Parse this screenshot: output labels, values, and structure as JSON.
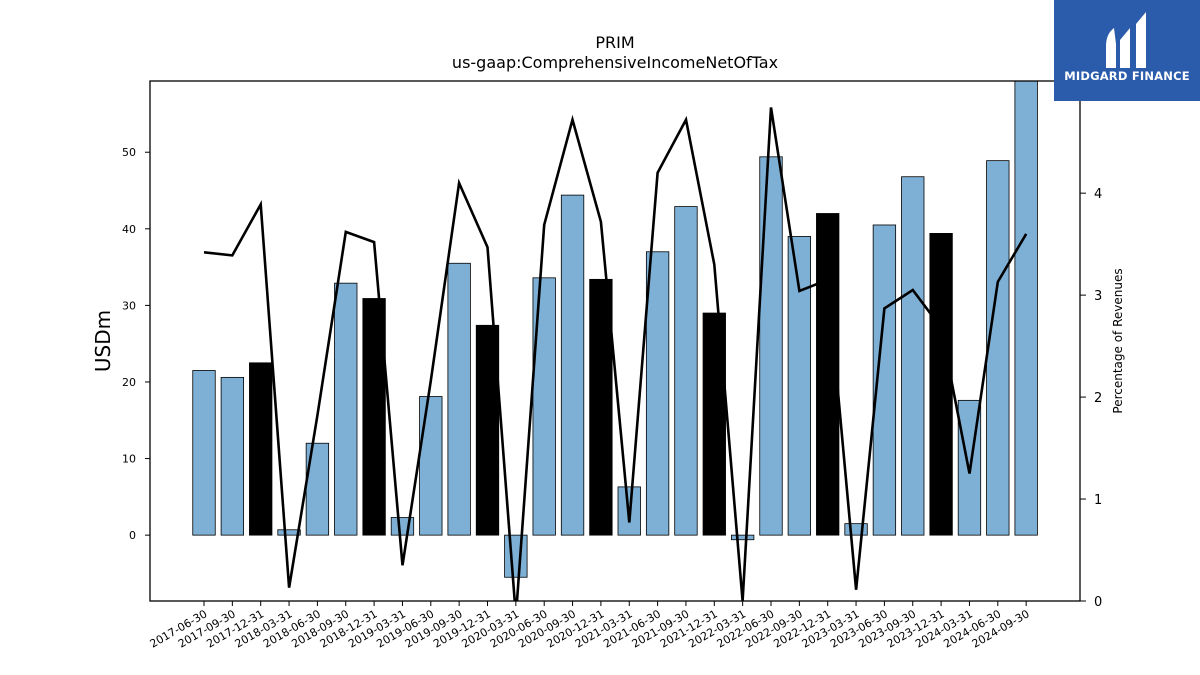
{
  "chart_data": {
    "type": "bar",
    "title": "PRIM",
    "subtitle": "us-gaap:ComprehensiveIncomeNetOfTax",
    "ylabel": "USDm",
    "y2label": "Percentage of Revenues",
    "ylim": [
      -8.6,
      59.3
    ],
    "y2lim": [
      0,
      5.1
    ],
    "yticks": [
      0,
      10,
      20,
      30,
      40,
      50
    ],
    "y2ticks": [
      0,
      1,
      2,
      3,
      4
    ],
    "categories": [
      "2017-06-30",
      "2017-09-30",
      "2017-12-31",
      "2018-03-31",
      "2018-06-30",
      "2018-09-30",
      "2018-12-31",
      "2019-03-31",
      "2019-06-30",
      "2019-09-30",
      "2019-12-31",
      "2020-03-31",
      "2020-06-30",
      "2020-09-30",
      "2020-12-31",
      "2021-03-31",
      "2021-06-30",
      "2021-09-30",
      "2021-12-31",
      "2022-03-31",
      "2022-06-30",
      "2022-09-30",
      "2022-12-31",
      "2023-03-31",
      "2023-06-30",
      "2023-09-30",
      "2023-12-31",
      "2024-03-31",
      "2024-06-30",
      "2024-09-30"
    ],
    "series": [
      {
        "kind": "bar",
        "axis": "left",
        "values": [
          21.5,
          20.6,
          22.5,
          0.7,
          12.0,
          32.9,
          30.9,
          2.3,
          18.1,
          35.5,
          27.4,
          -5.5,
          33.6,
          44.4,
          33.4,
          6.3,
          37.0,
          42.9,
          29.0,
          -0.6,
          49.4,
          39.0,
          42.0,
          1.5,
          40.5,
          46.8,
          39.4,
          17.6,
          48.9,
          59.3
        ],
        "colors": [
          "#7eb0d5",
          "#7eb0d5",
          "#000000",
          "#7eb0d5",
          "#7eb0d5",
          "#7eb0d5",
          "#000000",
          "#7eb0d5",
          "#7eb0d5",
          "#7eb0d5",
          "#000000",
          "#7eb0d5",
          "#7eb0d5",
          "#7eb0d5",
          "#000000",
          "#7eb0d5",
          "#7eb0d5",
          "#7eb0d5",
          "#000000",
          "#7eb0d5",
          "#7eb0d5",
          "#7eb0d5",
          "#000000",
          "#7eb0d5",
          "#7eb0d5",
          "#7eb0d5",
          "#000000",
          "#7eb0d5",
          "#7eb0d5",
          "#7eb0d5"
        ]
      },
      {
        "kind": "line",
        "axis": "right",
        "color": "#000000",
        "values": [
          3.42,
          3.39,
          3.89,
          0.13,
          1.82,
          3.62,
          3.52,
          0.35,
          2.16,
          4.1,
          3.47,
          -0.15,
          3.69,
          4.72,
          3.72,
          0.77,
          4.2,
          4.72,
          3.3,
          0.0,
          4.84,
          3.04,
          3.15,
          0.11,
          2.87,
          3.05,
          2.68,
          1.25,
          3.13,
          3.6
        ]
      }
    ],
    "grid": false,
    "legend": "none"
  },
  "logo": {
    "text": "MIDGARD FINANCE",
    "background": "#2b5bab",
    "icon": "midgard-m-icon"
  }
}
